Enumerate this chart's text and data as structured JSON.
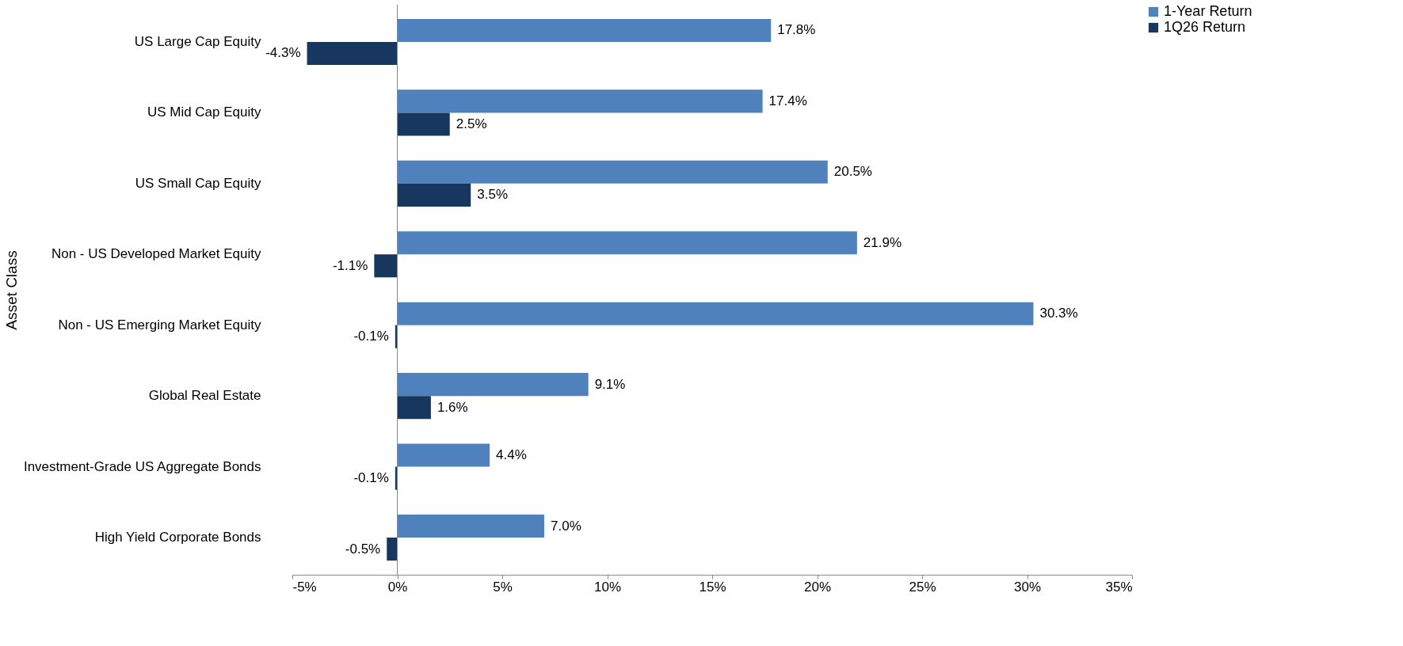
{
  "chart_data": {
    "type": "bar",
    "orientation": "horizontal",
    "ylabel": "Asset Class",
    "categories": [
      "US Large Cap Equity",
      "US Mid Cap Equity",
      "US Small Cap Equity",
      "Non - US Developed Market Equity",
      "Non - US Emerging Market Equity",
      "Global Real Estate",
      "Investment-Grade US Aggregate Bonds",
      "High Yield Corporate Bonds"
    ],
    "series": [
      {
        "name": "1-Year Return",
        "color": "#4f81bd",
        "values": [
          17.8,
          17.4,
          20.5,
          21.9,
          30.3,
          9.1,
          4.4,
          7.0
        ],
        "value_labels": [
          "17.8%",
          "17.4%",
          "20.5%",
          "21.9%",
          "30.3%",
          "9.1%",
          "4.4%",
          "7.0%"
        ]
      },
      {
        "name": "1Q26 Return",
        "color": "#17375e",
        "values": [
          -4.3,
          2.5,
          3.5,
          -1.1,
          -0.1,
          1.6,
          -0.1,
          -0.5
        ],
        "value_labels": [
          "-4.3%",
          "2.5%",
          "3.5%",
          "-1.1%",
          "-0.1%",
          "1.6%",
          "-0.1%",
          "-0.5%"
        ]
      }
    ],
    "xlim": [
      -5,
      35
    ],
    "xticks": [
      {
        "value": -5,
        "label": "-5%"
      },
      {
        "value": 0,
        "label": "0%"
      },
      {
        "value": 5,
        "label": "5%"
      },
      {
        "value": 10,
        "label": "10%"
      },
      {
        "value": 15,
        "label": "15%"
      },
      {
        "value": 20,
        "label": "20%"
      },
      {
        "value": 25,
        "label": "25%"
      },
      {
        "value": 30,
        "label": "30%"
      },
      {
        "value": 35,
        "label": "35%"
      }
    ],
    "ref_lines": [
      {
        "axis": "x",
        "value": 0,
        "color": "#888888"
      }
    ],
    "legend": "right",
    "grid": false
  }
}
